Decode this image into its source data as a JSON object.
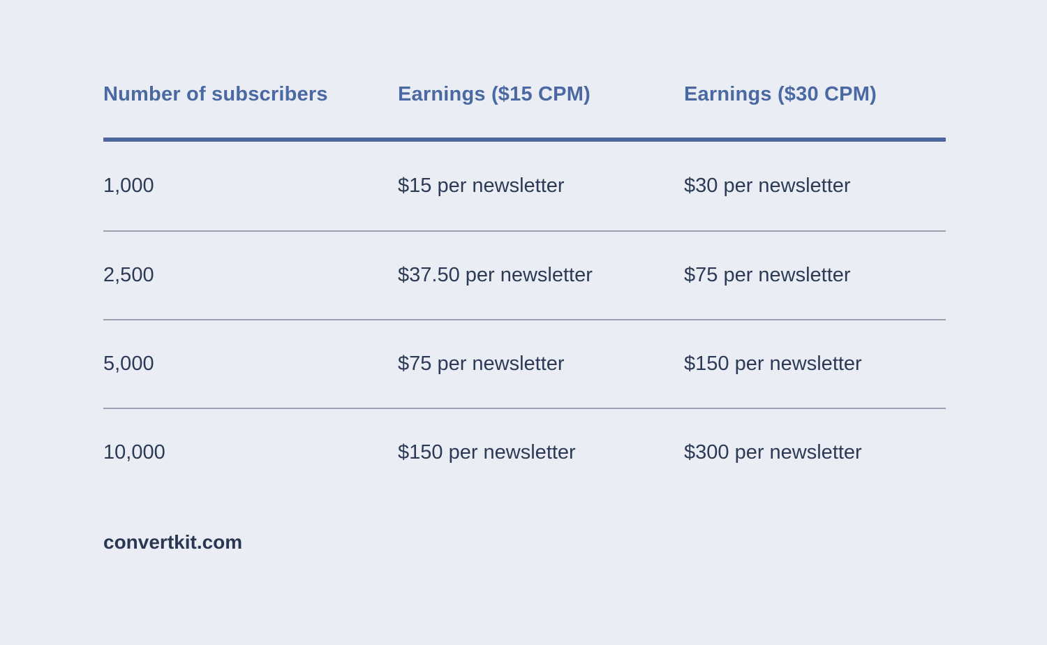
{
  "page": {
    "background_color": "#ebedf4",
    "accent_color": "#4a69a2",
    "rule_color": "#4e689e",
    "body_text_color": "#2c3a55",
    "divider_color": "#9ba3b2"
  },
  "chart_data": {
    "type": "table",
    "title": "",
    "columns": [
      "Number of subscribers",
      "Earnings ($15 CPM)",
      "Earnings ($30 CPM)"
    ],
    "rows": [
      [
        "1,000",
        "$15 per newsletter",
        "$30 per newsletter"
      ],
      [
        "2,500",
        "$37.50 per newsletter",
        "$75 per newsletter"
      ],
      [
        "5,000",
        "$75 per newsletter",
        "$150 per newsletter"
      ],
      [
        "10,000",
        "$150 per newsletter",
        "$300 per newsletter"
      ]
    ],
    "subscribers": [
      1000,
      2500,
      5000,
      10000
    ],
    "series": [
      {
        "name": "Earnings ($15 CPM)",
        "values": [
          15,
          37.5,
          75,
          150
        ],
        "unit": "$ per newsletter"
      },
      {
        "name": "Earnings ($30 CPM)",
        "values": [
          30,
          75,
          150,
          300
        ],
        "unit": "$ per newsletter"
      }
    ],
    "source": "convertkit.com"
  }
}
